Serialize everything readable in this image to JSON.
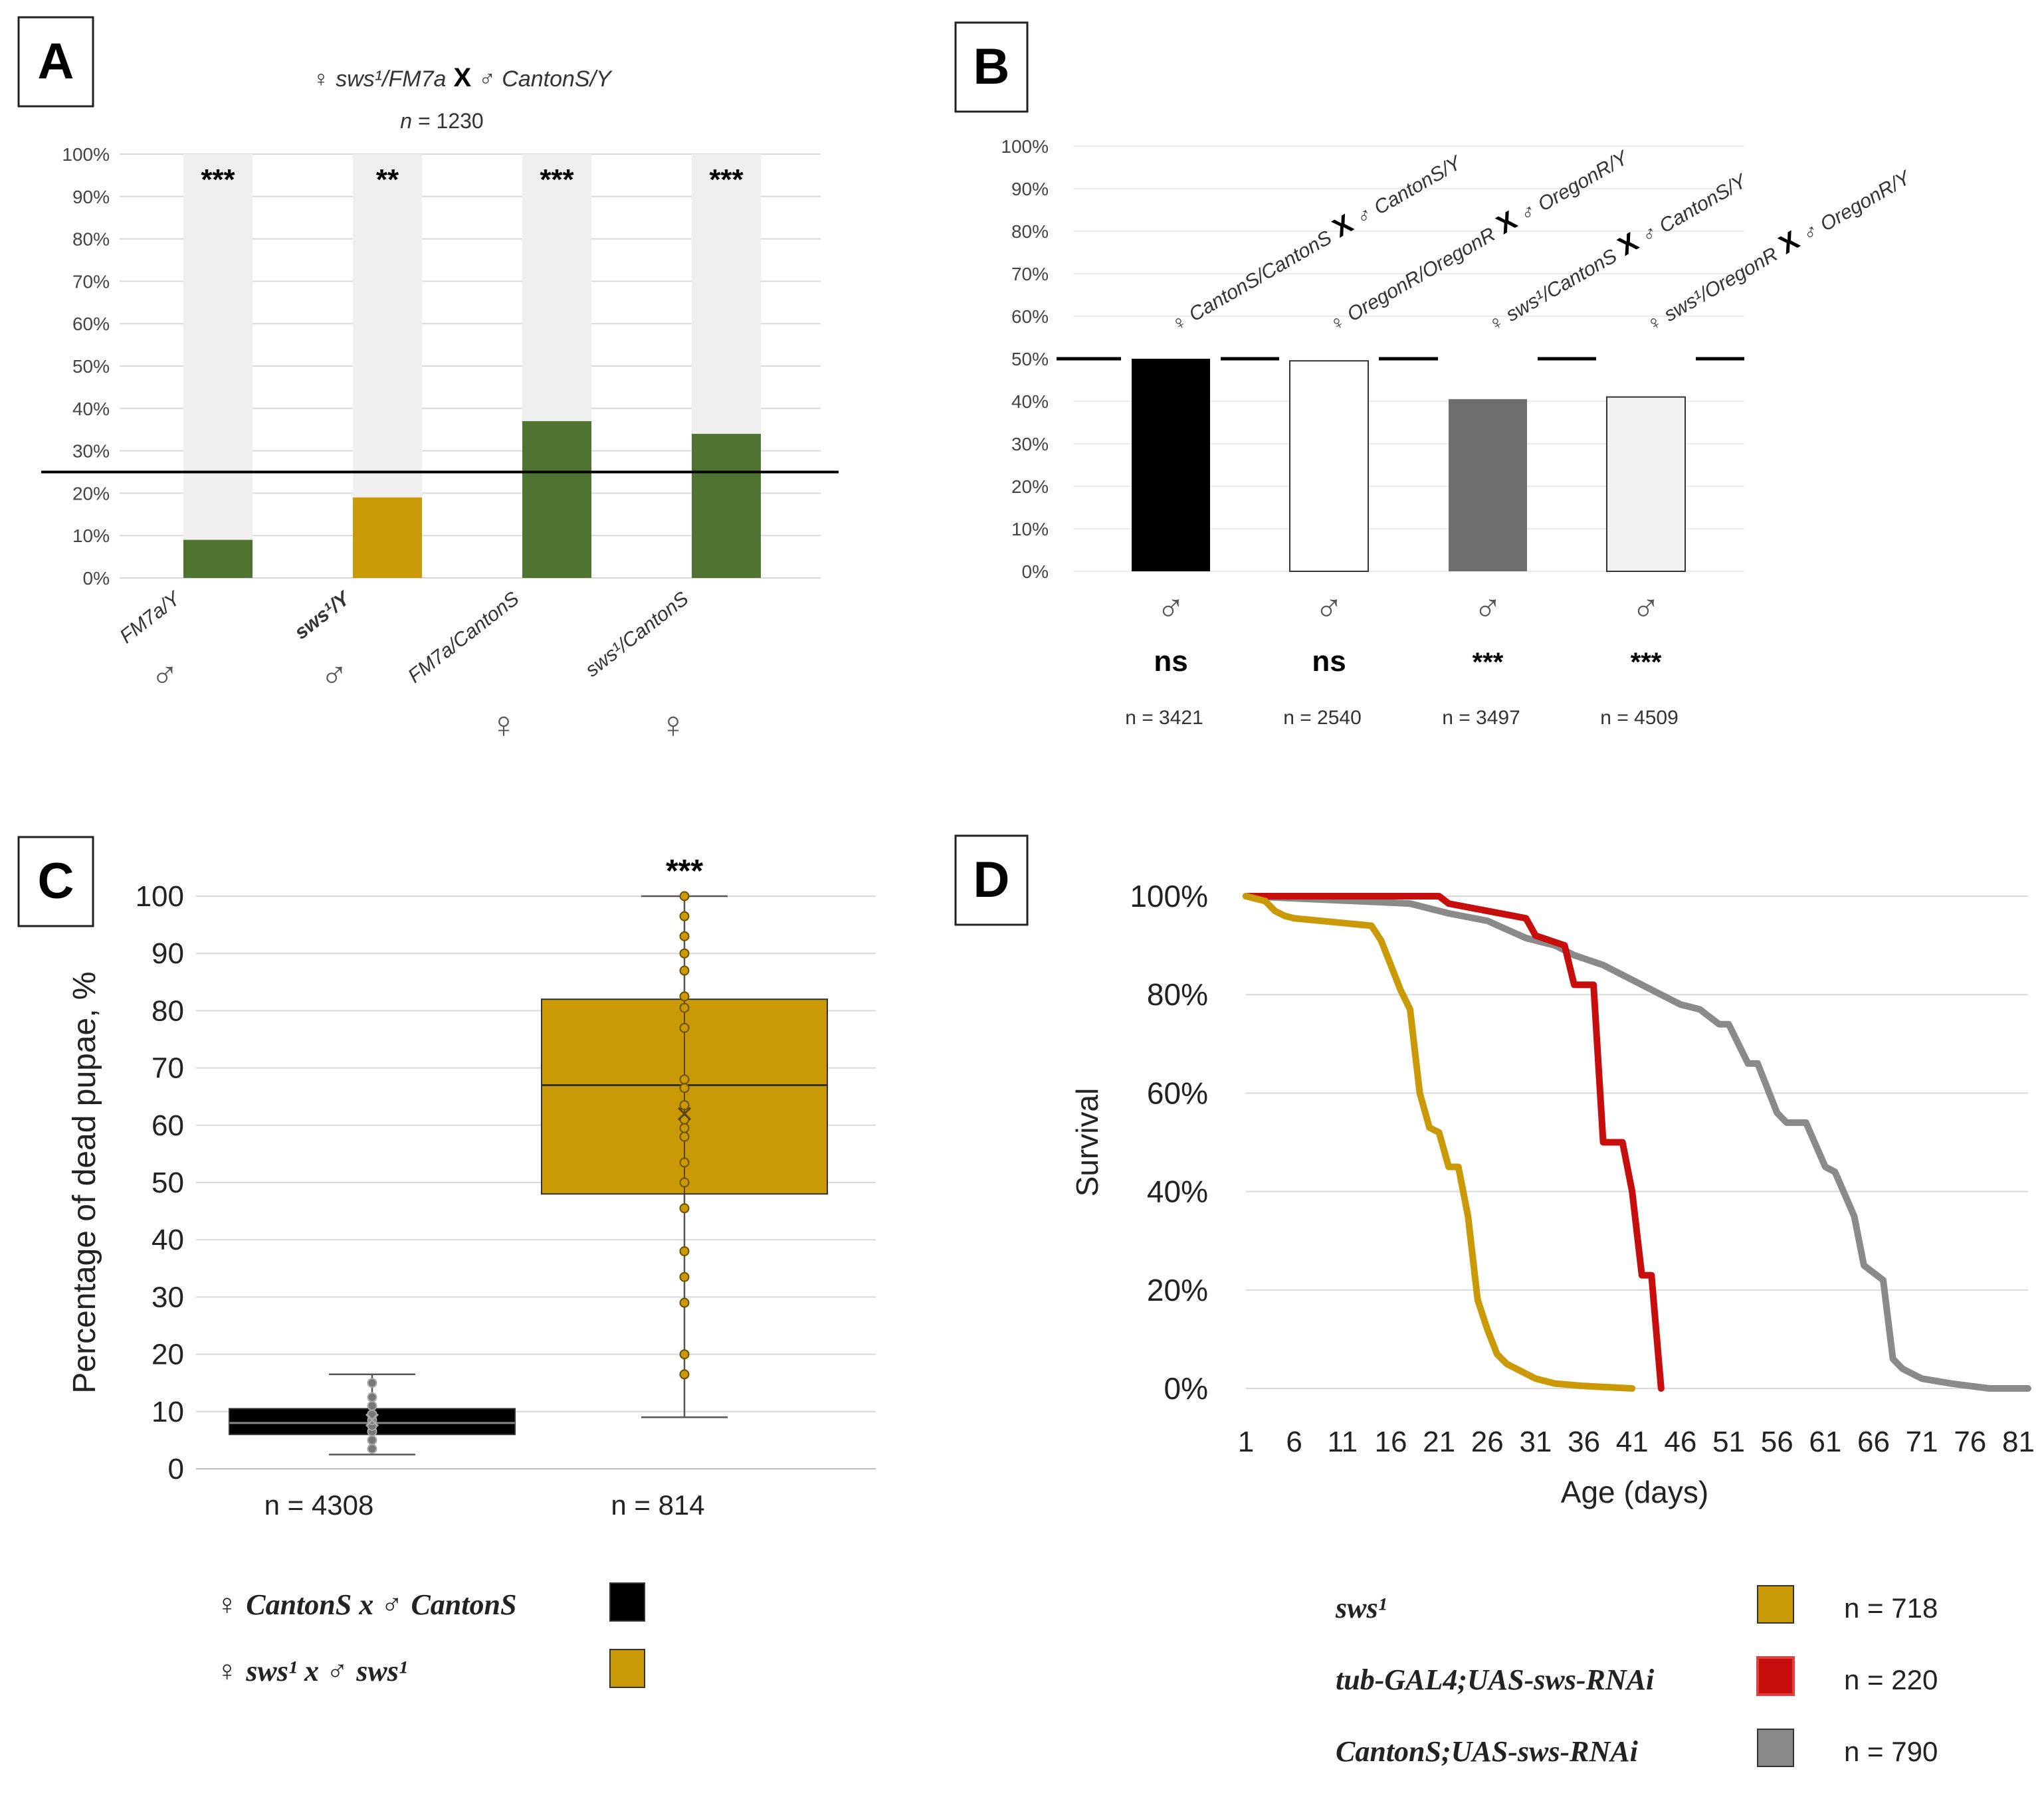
{
  "colors": {
    "green": "#4f7330",
    "gold": "#c99a06",
    "black": "#000000",
    "white": "#ffffff",
    "darkgrey": "#6e6e6e",
    "lightgrey": "#f1f1f1",
    "red": "#c80d0d",
    "grey": "#8a8a8a",
    "ribbon": "#efefef",
    "grid": "#d9d9d9"
  },
  "symbols": {
    "female": "♀",
    "male": "♂",
    "cross": "X",
    "n": "n",
    "eq": " = "
  },
  "chart_data": [
    {
      "panel": "A",
      "type": "bar",
      "title": "sws¹/FM7a X CantonS/Y",
      "title_parts": {
        "female_label": "sws¹/FM7a",
        "cross": "X",
        "male_label": "CantonS/Y"
      },
      "n_label": "n = 1230",
      "n_value": "1230",
      "ylim": [
        0,
        100
      ],
      "yticks": [
        "0%",
        "10%",
        "20%",
        "30%",
        "40%",
        "50%",
        "60%",
        "70%",
        "80%",
        "90%",
        "100%"
      ],
      "reference_line": 25,
      "categories": [
        "FM7a/Y",
        "sws¹/Y",
        "FM7a/CantonS",
        "sws¹/CantonS"
      ],
      "sex": [
        "male",
        "male",
        "female",
        "female"
      ],
      "values": [
        9,
        19,
        37,
        34
      ],
      "bar_colors": [
        "green",
        "gold",
        "green",
        "green"
      ],
      "significance": [
        "***",
        "**",
        "***",
        "***"
      ]
    },
    {
      "panel": "B",
      "type": "bar",
      "ylim": [
        0,
        100
      ],
      "yticks": [
        "0%",
        "10%",
        "20%",
        "30%",
        "40%",
        "50%",
        "60%",
        "70%",
        "80%",
        "90%",
        "100%"
      ],
      "reference_line": 50,
      "categories": [
        "CantonS/CantonS X CantonS/Y",
        "OregonR/OregonR X OregonR/Y",
        "sws¹/CantonS X CantonS/Y",
        "sws¹/OregonR X OregonR/Y"
      ],
      "cross_labels": [
        {
          "female": "CantonS/CantonS",
          "male": "CantonS/Y"
        },
        {
          "female": "OregonR/OregonR",
          "male": "OregonR/Y"
        },
        {
          "female": "sws¹/CantonS",
          "male": "CantonS/Y"
        },
        {
          "female": "sws¹/OregonR",
          "male": "OregonR/Y"
        }
      ],
      "values": [
        50,
        49.5,
        40.5,
        41
      ],
      "bar_colors": [
        "black",
        "white",
        "darkgrey",
        "lightgrey"
      ],
      "significance": [
        "ns",
        "ns",
        "***",
        "***"
      ],
      "n": [
        "n = 3421",
        "n = 2540",
        "n = 3497",
        "n = 4509"
      ]
    },
    {
      "panel": "C",
      "type": "box",
      "ylabel": "Percentage of dead pupae, %",
      "ylim": [
        0,
        100
      ],
      "yticks": [
        0,
        10,
        20,
        30,
        40,
        50,
        60,
        70,
        80,
        90,
        100
      ],
      "series": [
        {
          "name": "CantonS x CantonS",
          "female": "CantonS",
          "male": "CantonS",
          "color": "black",
          "min": 2.5,
          "q1": 6,
          "median": 8,
          "q3": 10.5,
          "max": 16.5,
          "mean": 8.5,
          "points": [
            3.5,
            5,
            6.5,
            7.5,
            8.5,
            9.5,
            11,
            12.5,
            15
          ],
          "n": "n = 4308",
          "significance": ""
        },
        {
          "name": "sws¹ x sws¹",
          "female": "sws¹",
          "male": "sws¹",
          "color": "gold",
          "min": 9,
          "q1": 48,
          "median": 67,
          "q3": 82,
          "max": 100,
          "mean": 62,
          "points": [
            16.5,
            20,
            29,
            33.5,
            38,
            45.5,
            50,
            53.5,
            58,
            59.5,
            61,
            63.5,
            66.5,
            68,
            77,
            80.5,
            82.5,
            87,
            90,
            93,
            96.5,
            100
          ],
          "n": "n = 814",
          "significance": "***"
        }
      ]
    },
    {
      "panel": "D",
      "type": "line",
      "xlabel": "Age (days)",
      "ylabel": "Survival",
      "xlim": [
        1,
        82
      ],
      "ylim": [
        0,
        100
      ],
      "xticks": [
        1,
        6,
        11,
        16,
        21,
        26,
        31,
        36,
        41,
        46,
        51,
        56,
        61,
        66,
        71,
        76,
        81
      ],
      "yticks": [
        "0%",
        "20%",
        "40%",
        "60%",
        "80%",
        "100%"
      ],
      "series": [
        {
          "name": "sws¹",
          "color": "gold",
          "n": "n = 718",
          "x": [
            1,
            3,
            4,
            5,
            6,
            14,
            15,
            16,
            17,
            18,
            19,
            20,
            21,
            22,
            23,
            24,
            25,
            26,
            27,
            28,
            29,
            30,
            31,
            33,
            36,
            41
          ],
          "y": [
            100,
            99,
            97,
            96,
            95.5,
            94,
            91,
            86,
            81,
            77,
            60,
            53,
            52,
            45,
            45,
            35,
            18,
            12,
            7,
            5,
            4,
            3,
            2,
            1,
            0.5,
            0
          ]
        },
        {
          "name": "tub-GAL4;UAS-sws-RNAi",
          "color": "red",
          "n": "n = 220",
          "x": [
            1,
            21,
            22,
            30,
            31,
            34,
            35,
            37,
            38,
            40,
            41,
            42,
            43,
            44
          ],
          "y": [
            100,
            100,
            98.5,
            95.5,
            92,
            90,
            82,
            82,
            50,
            50,
            40,
            23,
            23,
            0
          ]
        },
        {
          "name": "CantonS;UAS-sws-RNAi",
          "color": "grey",
          "n": "n = 790",
          "x": [
            1,
            18,
            22,
            26,
            30,
            33,
            35,
            38,
            40,
            43,
            46,
            48,
            50,
            51,
            53,
            54,
            56,
            57,
            59,
            61,
            62,
            64,
            65,
            67,
            68,
            69,
            71,
            74,
            76,
            78,
            82
          ],
          "y": [
            100,
            98.5,
            96.5,
            95,
            91.5,
            90,
            88,
            86,
            84,
            81,
            78,
            77,
            74,
            74,
            66,
            66,
            56,
            54,
            54,
            45,
            44,
            35,
            25,
            22,
            6,
            4,
            2,
            1,
            0.5,
            0,
            0
          ]
        }
      ]
    }
  ]
}
